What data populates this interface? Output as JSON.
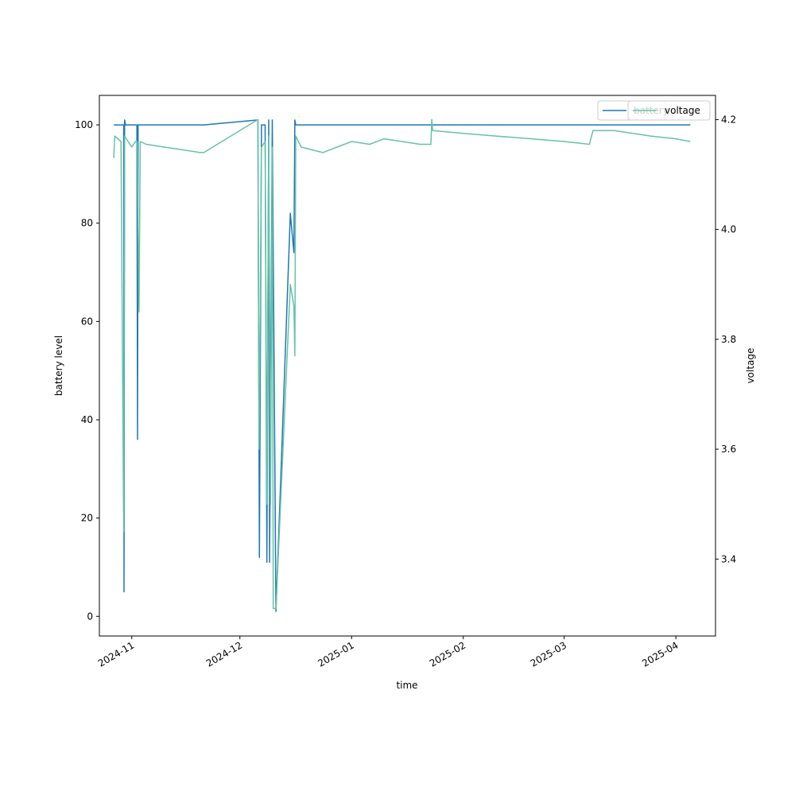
{
  "chart_data": {
    "type": "line",
    "xlabel": "time",
    "ylabel": "battery level",
    "y2label": "voltage",
    "xlim": [
      "2024-10-23",
      "2025-04-12"
    ],
    "ylim": [
      -4,
      106
    ],
    "y2lim": [
      3.26,
      4.244
    ],
    "x_ticks": [
      "2024-11",
      "2024-12",
      "2025-01",
      "2025-02",
      "2025-03",
      "2025-04"
    ],
    "y_ticks": [
      "0",
      "20",
      "40",
      "60",
      "80",
      "100"
    ],
    "y2_ticks": [
      "3.4",
      "3.6",
      "3.8",
      "4.0",
      "4.2"
    ],
    "grid": false,
    "legend_position": "top-right",
    "series": [
      {
        "name": "battery",
        "axis": "left",
        "color": "#1f77b4",
        "points": [
          [
            "2024-10-27",
            100
          ],
          [
            "2024-10-29",
            100
          ],
          [
            "2024-10-29T18:00",
            100
          ],
          [
            "2024-10-29T20:00",
            5
          ],
          [
            "2024-10-30",
            101
          ],
          [
            "2024-10-30T06:00",
            100
          ],
          [
            "2024-11-02",
            100
          ],
          [
            "2024-11-02T10:00",
            100
          ],
          [
            "2024-11-02T14:00",
            36
          ],
          [
            "2024-11-02T18:00",
            100
          ],
          [
            "2024-11-21",
            100
          ],
          [
            "2024-12-06",
            101
          ],
          [
            "2024-12-06T10:00",
            12
          ],
          [
            "2024-12-07",
            100
          ],
          [
            "2024-12-08",
            100
          ],
          [
            "2024-12-08T12:00",
            11
          ],
          [
            "2024-12-09",
            101
          ],
          [
            "2024-12-09T06:00",
            11
          ],
          [
            "2024-12-10",
            101
          ],
          [
            "2024-12-10T06:00",
            75
          ],
          [
            "2024-12-11",
            1
          ],
          [
            "2024-12-15",
            82
          ],
          [
            "2024-12-15T06:00",
            80
          ],
          [
            "2024-12-16",
            74
          ],
          [
            "2024-12-16T06:00",
            101
          ],
          [
            "2024-12-16T12:00",
            100
          ],
          [
            "2025-01-20",
            100
          ],
          [
            "2025-01-23",
            100
          ],
          [
            "2025-02-15",
            100
          ],
          [
            "2025-03-01",
            100
          ],
          [
            "2025-03-20",
            100
          ],
          [
            "2025-04-05",
            100
          ]
        ]
      },
      {
        "name": "voltage",
        "axis": "right",
        "color": "#66c2a5",
        "points": [
          [
            "2024-10-27",
            4.13
          ],
          [
            "2024-10-27T06:00",
            4.17
          ],
          [
            "2024-10-29",
            4.16
          ],
          [
            "2024-10-29T18:00",
            3.45
          ],
          [
            "2024-10-30",
            4.17
          ],
          [
            "2024-11-01",
            4.15
          ],
          [
            "2024-11-02",
            4.16
          ],
          [
            "2024-11-02T12:00",
            4.16
          ],
          [
            "2024-11-03",
            3.85
          ],
          [
            "2024-11-03T08:00",
            4.16
          ],
          [
            "2024-11-05",
            4.155
          ],
          [
            "2024-11-10",
            4.15
          ],
          [
            "2024-11-15",
            4.145
          ],
          [
            "2024-11-20",
            4.14
          ],
          [
            "2024-11-21",
            4.14
          ],
          [
            "2024-12-06",
            4.2
          ],
          [
            "2024-12-06T08:00",
            3.6
          ],
          [
            "2024-12-07",
            4.15
          ],
          [
            "2024-12-08",
            4.16
          ],
          [
            "2024-12-08T12:00",
            3.5
          ],
          [
            "2024-12-09",
            4.17
          ],
          [
            "2024-12-09T12:00",
            3.5
          ],
          [
            "2024-12-10",
            4.15
          ],
          [
            "2024-12-10T06:00",
            3.31
          ],
          [
            "2024-12-11",
            3.31
          ],
          [
            "2024-12-15",
            3.9
          ],
          [
            "2024-12-16",
            3.86
          ],
          [
            "2024-12-16T06:00",
            3.77
          ],
          [
            "2024-12-16T12:00",
            4.17
          ],
          [
            "2024-12-18",
            4.15
          ],
          [
            "2024-12-24",
            4.14
          ],
          [
            "2025-01-01",
            4.16
          ],
          [
            "2025-01-06",
            4.155
          ],
          [
            "2025-01-10",
            4.165
          ],
          [
            "2025-01-20",
            4.155
          ],
          [
            "2025-01-23",
            4.155
          ],
          [
            "2025-01-23T06:00",
            4.2
          ],
          [
            "2025-01-23T12:00",
            4.18
          ],
          [
            "2025-02-01",
            4.175
          ],
          [
            "2025-02-10",
            4.17
          ],
          [
            "2025-02-20",
            4.165
          ],
          [
            "2025-03-01",
            4.16
          ],
          [
            "2025-03-08",
            4.155
          ],
          [
            "2025-03-09",
            4.18
          ],
          [
            "2025-03-15",
            4.18
          ],
          [
            "2025-03-20",
            4.175
          ],
          [
            "2025-03-25",
            4.17
          ],
          [
            "2025-04-01",
            4.165
          ],
          [
            "2025-04-05",
            4.16
          ]
        ]
      }
    ]
  }
}
